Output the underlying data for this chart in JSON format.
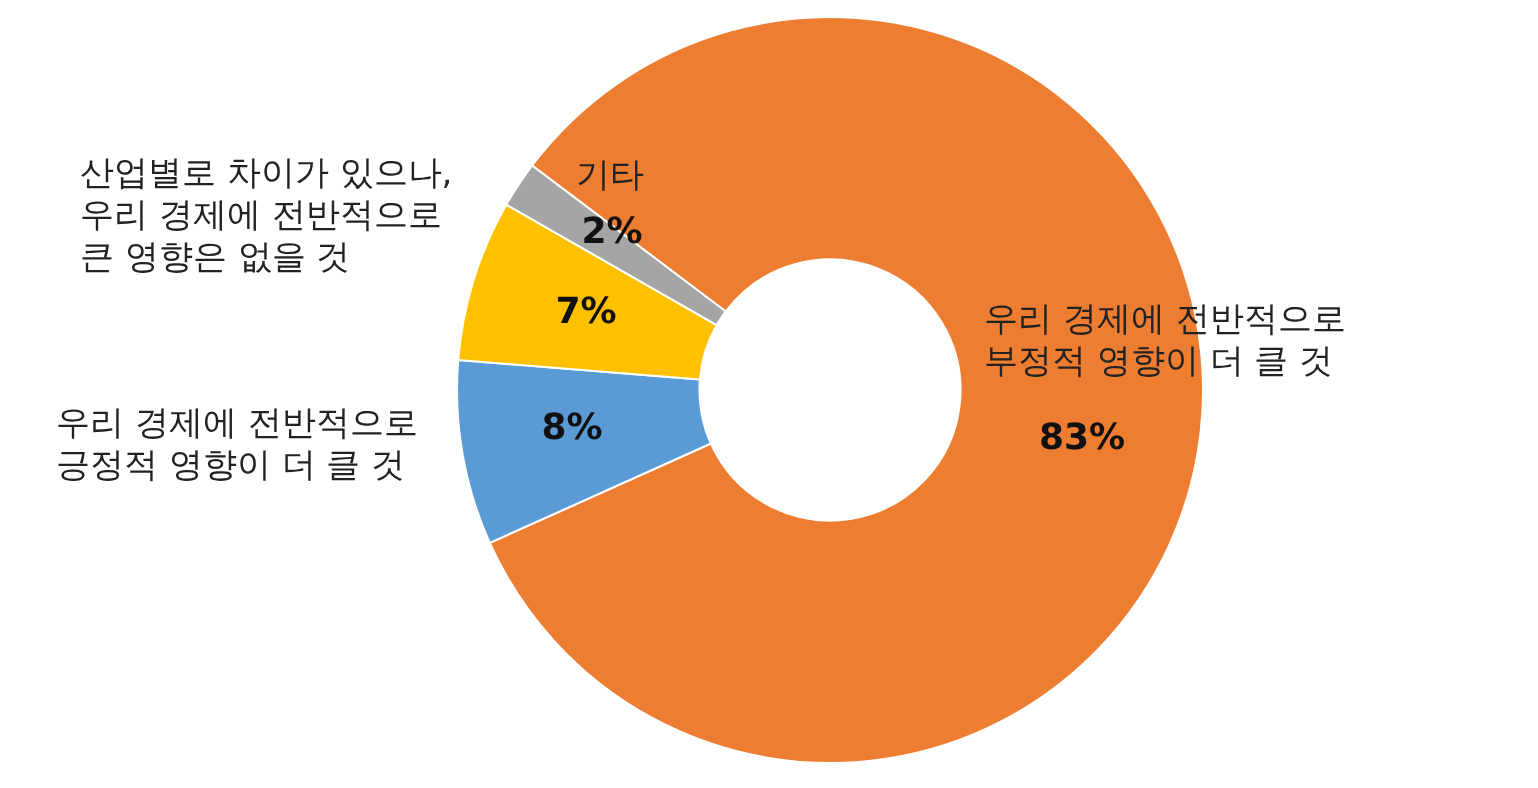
{
  "chart_data": {
    "type": "donut",
    "categories": [
      "우리 경제에 전반적으로\n부정적 영향이 더 클 것",
      "우리 경제에 전반적으로\n긍정적 영향이 더 클 것",
      "산업별로 차이가 있으나,\n우리 경제에 전반적으로\n큰 영향은 없을 것",
      "기타"
    ],
    "values": [
      83,
      8,
      7,
      2
    ],
    "colors": [
      "#ed7d31",
      "#5b9bd5",
      "#ffc000",
      "#a5a5a5"
    ],
    "value_labels": [
      "83%",
      "8%",
      "7%",
      "2%"
    ],
    "legend": false
  }
}
